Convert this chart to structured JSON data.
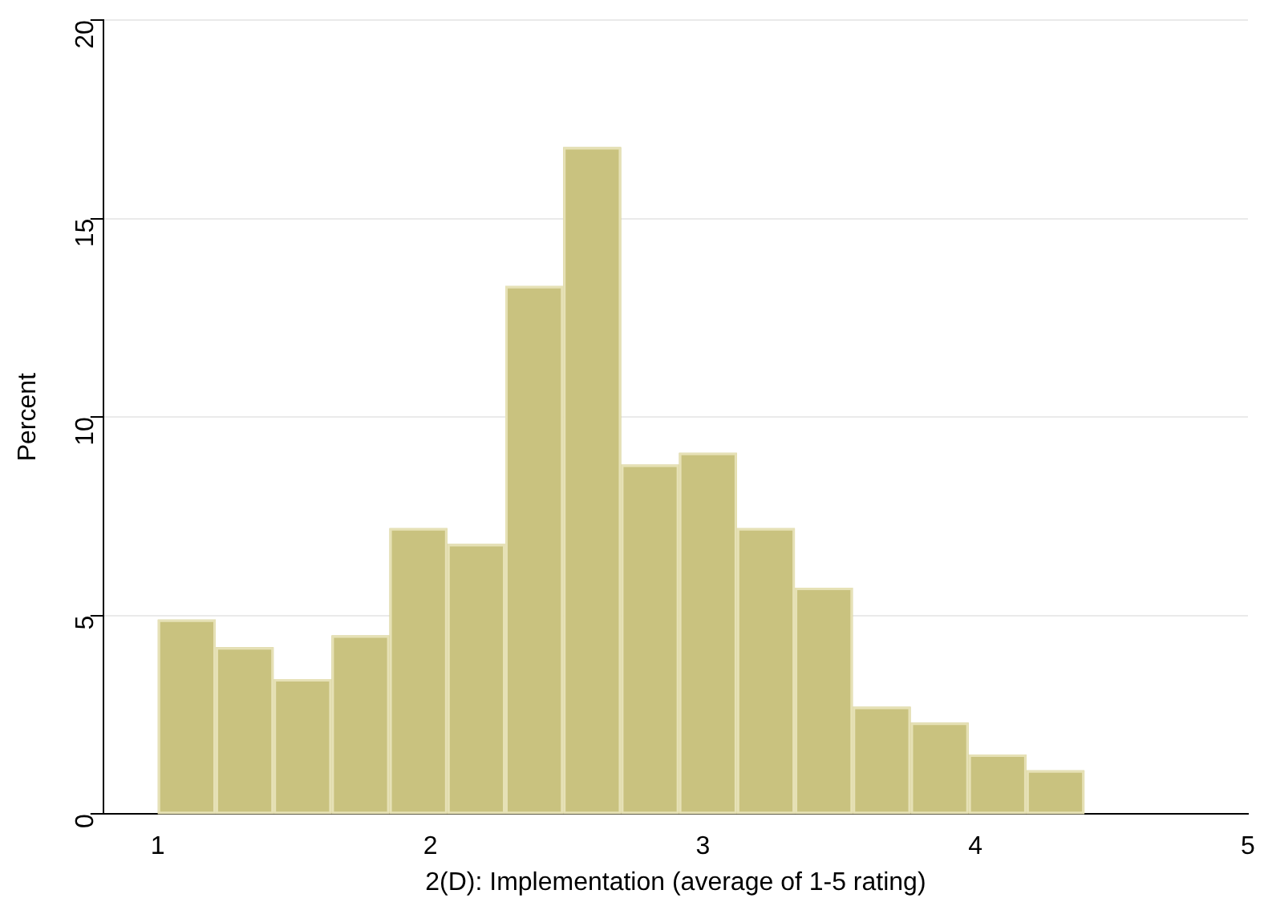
{
  "chart_data": {
    "type": "histogram",
    "xlabel": "2(D): Implementation (average of 1-5 rating)",
    "ylabel": "Percent",
    "bins": [
      1,
      1.2125,
      1.425,
      1.6375,
      1.85,
      2.0625,
      2.275,
      2.4875,
      2.7,
      2.9125,
      3.125,
      3.3375,
      3.55,
      3.7625,
      3.975,
      4.1875,
      4.4
    ],
    "values": [
      4.9,
      4.2,
      3.4,
      4.5,
      7.2,
      6.8,
      13.3,
      16.8,
      8.8,
      9.1,
      7.2,
      5.7,
      2.7,
      2.3,
      1.5,
      1.1
    ],
    "color": "#c9c27f",
    "xlim": [
      0.8,
      5
    ],
    "xticks": [
      1,
      2,
      3,
      4,
      5
    ],
    "ylim": [
      0,
      20
    ],
    "yticks": [
      0,
      5,
      10,
      15,
      20
    ],
    "grid": "y"
  }
}
